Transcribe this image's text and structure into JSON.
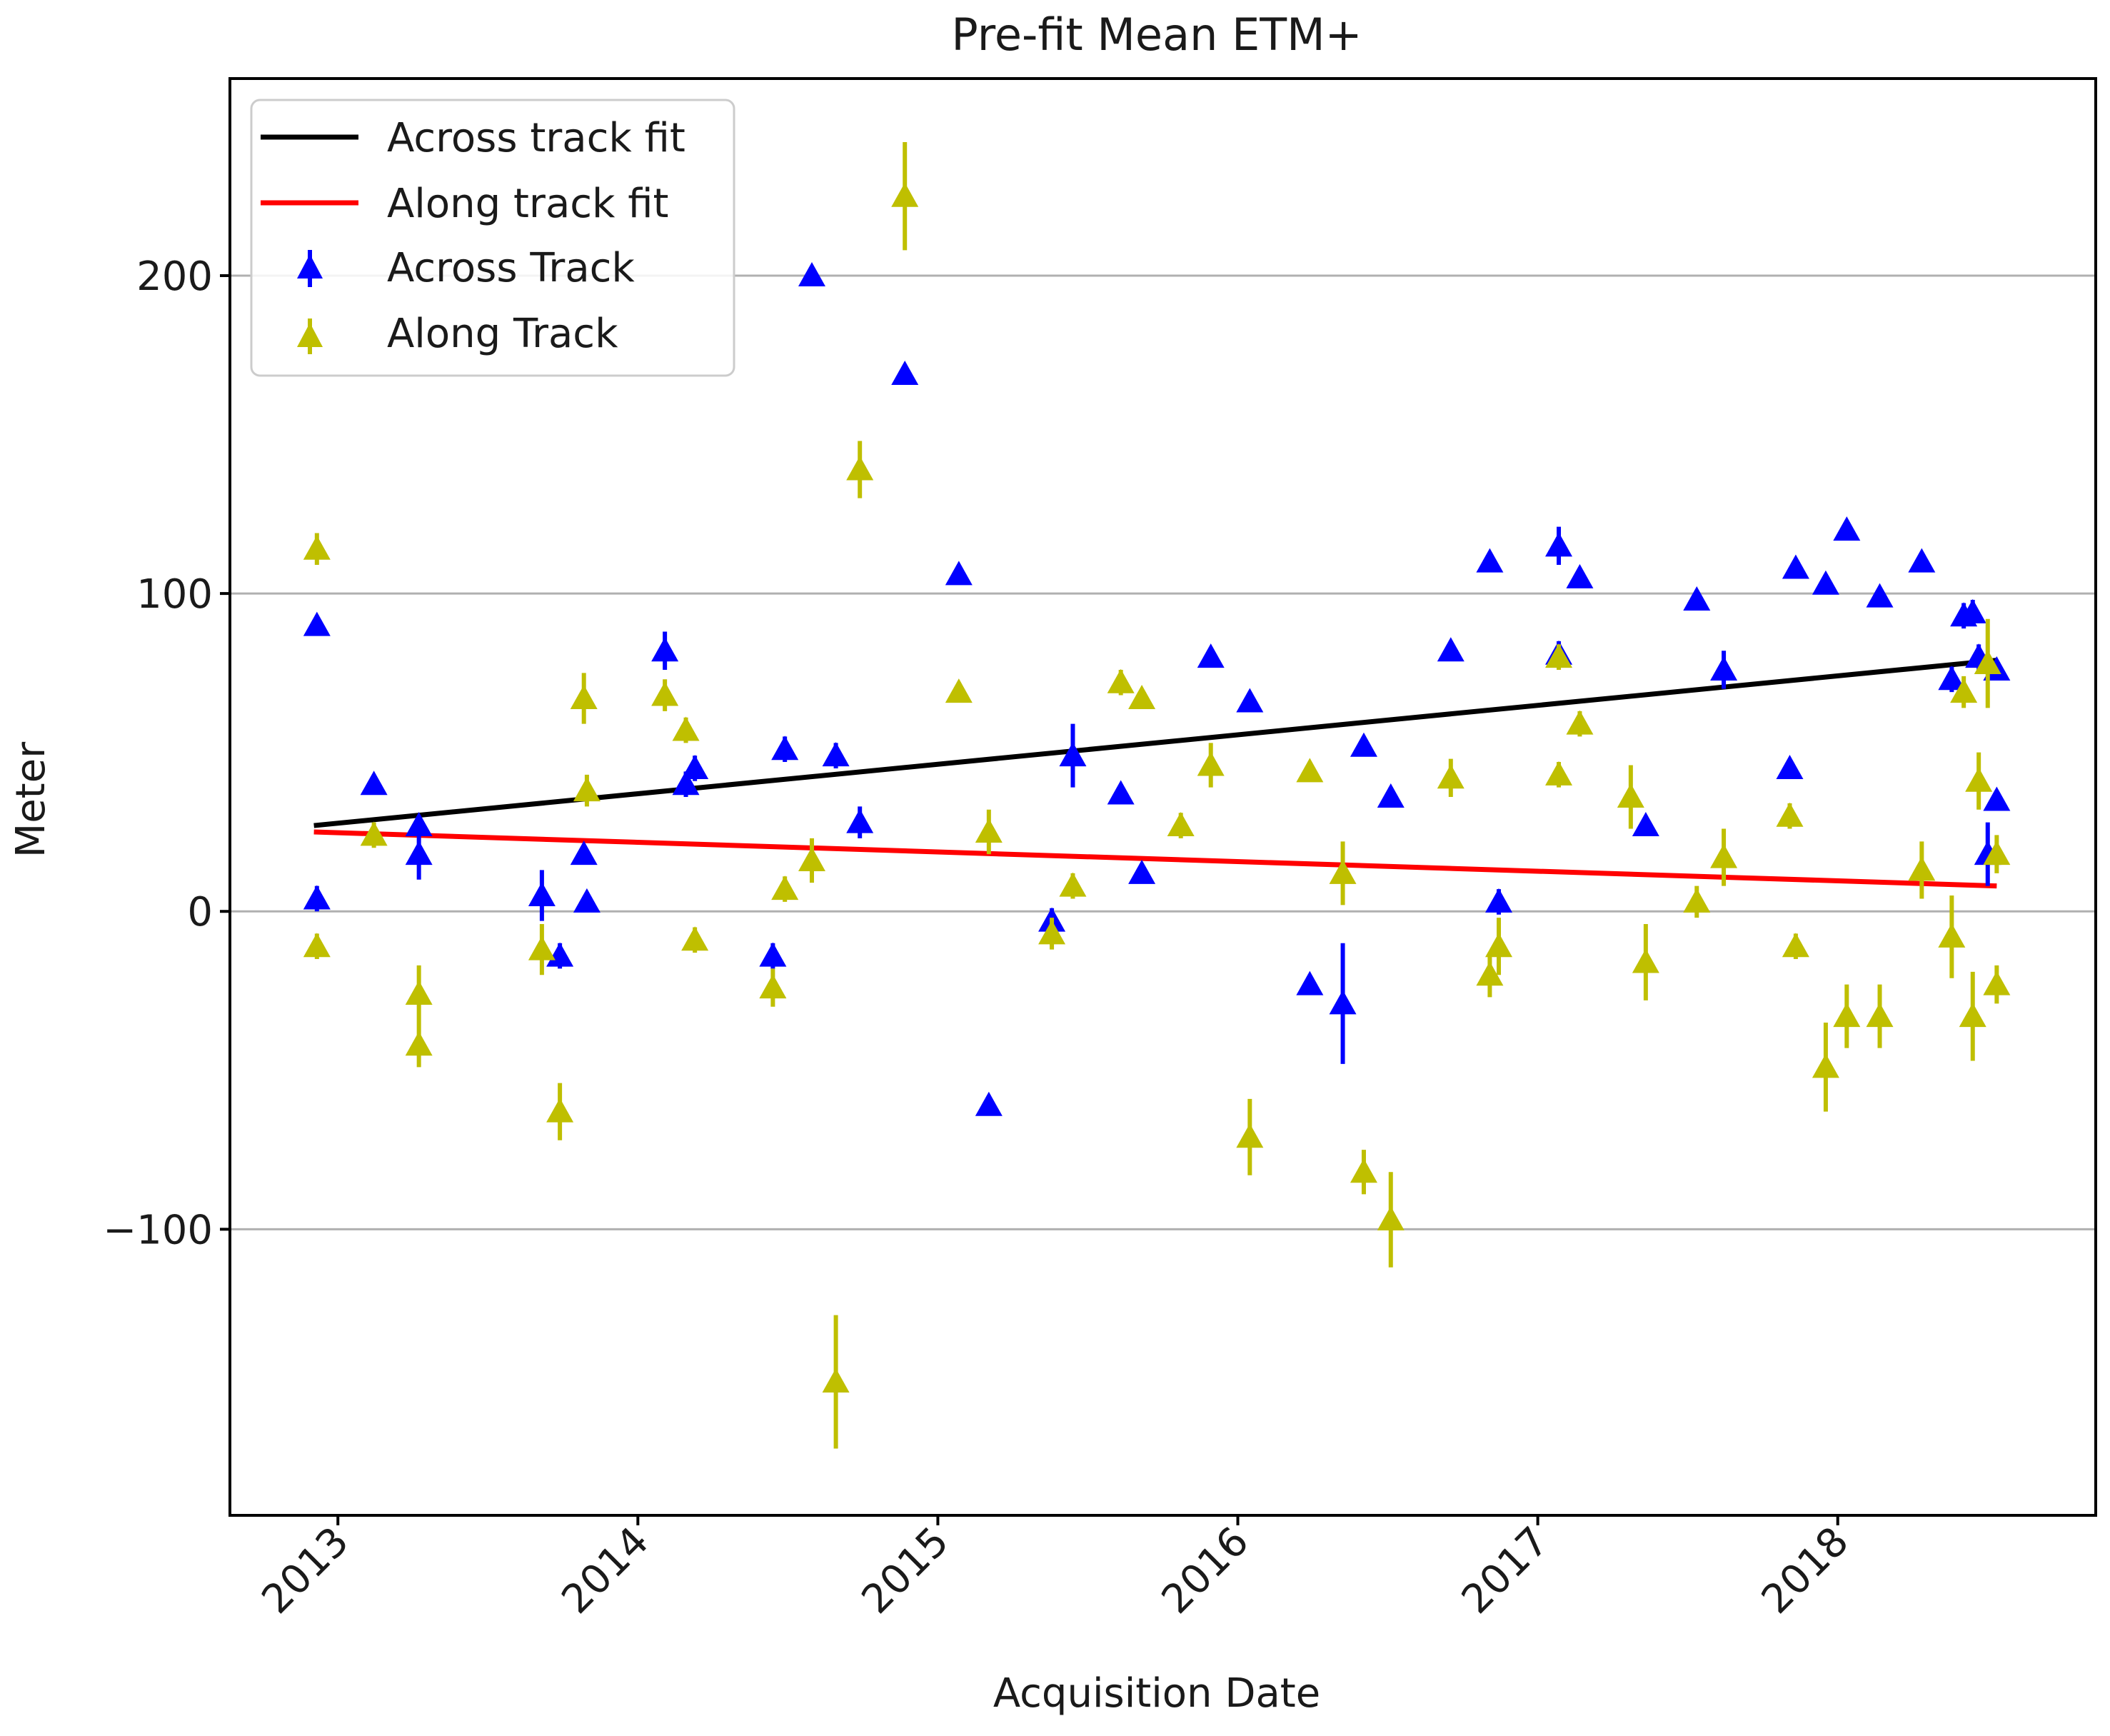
{
  "chart_data": {
    "type": "scatter",
    "title": "Pre-fit Mean ETM+",
    "xlabel": "Acquisition Date",
    "ylabel": "Meter",
    "xlim": [
      2012.64,
      2018.86
    ],
    "ylim": [
      -190,
      262
    ],
    "x_ticks": [
      2013,
      2014,
      2015,
      2016,
      2017,
      2018
    ],
    "x_tick_labels": [
      "2013",
      "2014",
      "2015",
      "2016",
      "2017",
      "2018"
    ],
    "y_ticks": [
      -100,
      0,
      100,
      200
    ],
    "y_tick_labels": [
      "−100",
      "0",
      "100",
      "200"
    ],
    "grid": "horizontal",
    "legend_position": "top-left",
    "legend": [
      {
        "label": "Across track fit",
        "kind": "line",
        "color": "#000000"
      },
      {
        "label": "Along track fit",
        "kind": "line",
        "color": "#ff0000"
      },
      {
        "label": "Across Track",
        "kind": "marker",
        "color": "#0000ff"
      },
      {
        "label": "Along Track",
        "kind": "marker",
        "color": "#bfbf00"
      }
    ],
    "fits": [
      {
        "name": "Across track fit",
        "color": "#000000",
        "x": [
          2012.92,
          2018.53
        ],
        "y": [
          27,
          79
        ]
      },
      {
        "name": "Along track fit",
        "color": "#ff0000",
        "x": [
          2012.92,
          2018.53
        ],
        "y": [
          25,
          8
        ]
      }
    ],
    "series": [
      {
        "name": "Across Track",
        "color": "#0000ff",
        "points": [
          [
            2012.93,
            90,
            3
          ],
          [
            2012.93,
            4,
            4
          ],
          [
            2013.12,
            40,
            3
          ],
          [
            2013.27,
            18,
            8
          ],
          [
            2013.27,
            27,
            3
          ],
          [
            2013.68,
            5,
            8
          ],
          [
            2013.74,
            -14,
            4
          ],
          [
            2013.82,
            18,
            3
          ],
          [
            2013.83,
            3,
            3
          ],
          [
            2014.09,
            82,
            6
          ],
          [
            2014.16,
            40,
            4
          ],
          [
            2014.19,
            45,
            4
          ],
          [
            2014.45,
            -14,
            4
          ],
          [
            2014.49,
            51,
            4
          ],
          [
            2014.58,
            200,
            3
          ],
          [
            2014.66,
            49,
            4
          ],
          [
            2014.74,
            28,
            5
          ],
          [
            2014.89,
            169,
            3
          ],
          [
            2015.07,
            106,
            3
          ],
          [
            2015.17,
            -61,
            3
          ],
          [
            2015.38,
            -3,
            4
          ],
          [
            2015.45,
            49,
            10
          ],
          [
            2015.61,
            37,
            3
          ],
          [
            2015.68,
            12,
            3
          ],
          [
            2015.91,
            80,
            3
          ],
          [
            2016.04,
            66,
            3
          ],
          [
            2016.24,
            -23,
            3
          ],
          [
            2016.35,
            -29,
            19
          ],
          [
            2016.42,
            52,
            3
          ],
          [
            2016.51,
            36,
            3
          ],
          [
            2016.71,
            82,
            3
          ],
          [
            2016.84,
            110,
            3
          ],
          [
            2016.87,
            3,
            4
          ],
          [
            2017.07,
            115,
            6
          ],
          [
            2017.07,
            81,
            4
          ],
          [
            2017.14,
            105,
            3
          ],
          [
            2017.36,
            27,
            3
          ],
          [
            2017.53,
            98,
            3
          ],
          [
            2017.62,
            76,
            6
          ],
          [
            2017.84,
            45,
            3
          ],
          [
            2017.86,
            108,
            3
          ],
          [
            2017.96,
            103,
            3
          ],
          [
            2018.03,
            120,
            3
          ],
          [
            2018.14,
            99,
            3
          ],
          [
            2018.28,
            110,
            3
          ],
          [
            2018.38,
            73,
            4
          ],
          [
            2018.42,
            93,
            4
          ],
          [
            2018.45,
            94,
            4
          ],
          [
            2018.47,
            80,
            4
          ],
          [
            2018.5,
            18,
            10
          ],
          [
            2018.53,
            76,
            3
          ],
          [
            2018.53,
            35,
            3
          ]
        ]
      },
      {
        "name": "Along Track",
        "color": "#bfbf00",
        "points": [
          [
            2012.93,
            114,
            5
          ],
          [
            2012.93,
            -11,
            4
          ],
          [
            2013.12,
            24,
            4
          ],
          [
            2013.27,
            -26,
            9
          ],
          [
            2013.27,
            -42,
            7
          ],
          [
            2013.68,
            -12,
            8
          ],
          [
            2013.74,
            -63,
            9
          ],
          [
            2013.82,
            67,
            8
          ],
          [
            2013.83,
            38,
            5
          ],
          [
            2014.09,
            68,
            5
          ],
          [
            2014.16,
            57,
            4
          ],
          [
            2014.19,
            -9,
            4
          ],
          [
            2014.45,
            -24,
            6
          ],
          [
            2014.49,
            7,
            4
          ],
          [
            2014.58,
            16,
            7
          ],
          [
            2014.66,
            -148,
            21
          ],
          [
            2014.74,
            139,
            9
          ],
          [
            2014.89,
            225,
            17
          ],
          [
            2015.07,
            69,
            3
          ],
          [
            2015.17,
            25,
            7
          ],
          [
            2015.38,
            -7,
            5
          ],
          [
            2015.45,
            8,
            4
          ],
          [
            2015.61,
            72,
            4
          ],
          [
            2015.68,
            67,
            3
          ],
          [
            2015.81,
            27,
            4
          ],
          [
            2015.91,
            46,
            7
          ],
          [
            2016.04,
            -71,
            12
          ],
          [
            2016.24,
            44,
            3
          ],
          [
            2016.35,
            12,
            10
          ],
          [
            2016.42,
            -82,
            7
          ],
          [
            2016.51,
            -97,
            15
          ],
          [
            2016.71,
            42,
            6
          ],
          [
            2016.84,
            -20,
            7
          ],
          [
            2016.87,
            -11,
            9
          ],
          [
            2017.07,
            43,
            4
          ],
          [
            2017.07,
            80,
            4
          ],
          [
            2017.14,
            59,
            4
          ],
          [
            2017.31,
            36,
            10
          ],
          [
            2017.36,
            -16,
            12
          ],
          [
            2017.53,
            3,
            5
          ],
          [
            2017.62,
            17,
            9
          ],
          [
            2017.84,
            30,
            4
          ],
          [
            2017.86,
            -11,
            4
          ],
          [
            2017.96,
            -49,
            14
          ],
          [
            2018.03,
            -33,
            10
          ],
          [
            2018.14,
            -33,
            10
          ],
          [
            2018.28,
            13,
            9
          ],
          [
            2018.38,
            -8,
            13
          ],
          [
            2018.42,
            69,
            5
          ],
          [
            2018.45,
            -33,
            14
          ],
          [
            2018.47,
            41,
            9
          ],
          [
            2018.5,
            78,
            14
          ],
          [
            2018.53,
            -23,
            6
          ],
          [
            2018.53,
            18,
            6
          ]
        ]
      }
    ]
  }
}
